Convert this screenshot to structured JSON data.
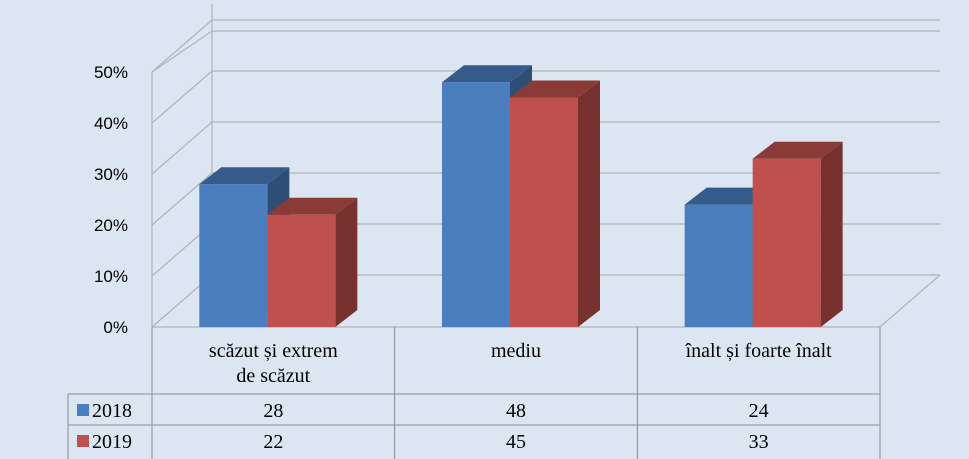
{
  "chart_data": {
    "type": "bar",
    "categories": [
      "scăzut și extrem de scăzut",
      "mediu",
      "înalt și foarte înalt"
    ],
    "category_lines": [
      [
        "scăzut și extrem",
        "de scăzut"
      ],
      [
        "mediu"
      ],
      [
        "înalt și foarte înalt"
      ]
    ],
    "series": [
      {
        "name": "2018",
        "values": [
          28,
          48,
          24
        ],
        "color": "#4a7ebf"
      },
      {
        "name": "2019",
        "values": [
          22,
          45,
          33
        ],
        "color": "#c0504d"
      }
    ],
    "value_labels": [
      [
        "28",
        "48",
        "24"
      ],
      [
        "22",
        "45",
        "33"
      ]
    ],
    "yticks": [
      "0%",
      "10%",
      "20%",
      "30%",
      "40%",
      "50%"
    ],
    "ylim": [
      0,
      50
    ],
    "grid": true,
    "three_d": true,
    "data_table": true,
    "title": "",
    "xlabel": "",
    "ylabel": ""
  }
}
